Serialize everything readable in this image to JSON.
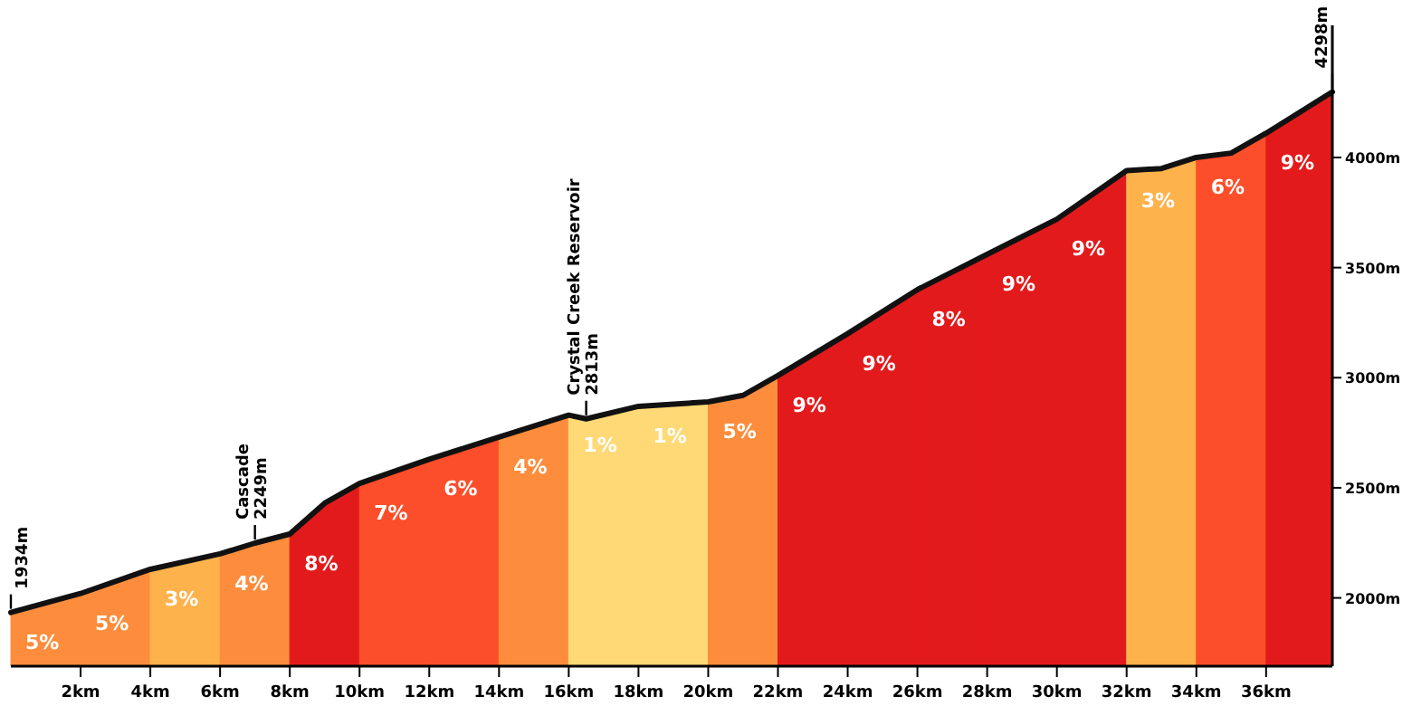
{
  "chart_data": {
    "type": "area",
    "series": [
      {
        "name": "5%",
        "color": "#fd8d3c",
        "x": [
          0,
          2
        ],
        "values": [
          1934,
          2020
        ]
      },
      {
        "name": "5%",
        "color": "#fd8d3c",
        "x": [
          2,
          4
        ],
        "values": [
          2020,
          2130
        ]
      },
      {
        "name": "3%",
        "color": "#feb24c",
        "x": [
          4,
          6
        ],
        "values": [
          2130,
          2200
        ]
      },
      {
        "name": "4%",
        "color": "#fd8d3c",
        "x": [
          6,
          7,
          8
        ],
        "values": [
          2200,
          2249,
          2290
        ]
      },
      {
        "name": "8%",
        "color": "#e31a1c",
        "x": [
          8,
          9,
          10
        ],
        "values": [
          2290,
          2430,
          2520
        ]
      },
      {
        "name": "7%",
        "color": "#fc4e2a",
        "x": [
          10,
          12
        ],
        "values": [
          2520,
          2630
        ]
      },
      {
        "name": "6%",
        "color": "#fc4e2a",
        "x": [
          12,
          14
        ],
        "values": [
          2630,
          2730
        ]
      },
      {
        "name": "4%",
        "color": "#fd8d3c",
        "x": [
          14,
          16
        ],
        "values": [
          2730,
          2830
        ]
      },
      {
        "name": "1%",
        "color": "#fed976",
        "x": [
          16,
          16.5,
          18
        ],
        "values": [
          2830,
          2813,
          2870
        ]
      },
      {
        "name": "1%",
        "color": "#fed976",
        "x": [
          18,
          20
        ],
        "values": [
          2870,
          2890
        ]
      },
      {
        "name": "5%",
        "color": "#fd8d3c",
        "x": [
          20,
          21,
          22
        ],
        "values": [
          2890,
          2920,
          3010
        ]
      },
      {
        "name": "9%",
        "color": "#e31a1c",
        "x": [
          22,
          24
        ],
        "values": [
          3010,
          3200
        ]
      },
      {
        "name": "9%",
        "color": "#e31a1c",
        "x": [
          24,
          26
        ],
        "values": [
          3200,
          3400
        ]
      },
      {
        "name": "8%",
        "color": "#e31a1c",
        "x": [
          26,
          28
        ],
        "values": [
          3400,
          3560
        ]
      },
      {
        "name": "9%",
        "color": "#e31a1c",
        "x": [
          28,
          30
        ],
        "values": [
          3560,
          3720
        ]
      },
      {
        "name": "9%",
        "color": "#e31a1c",
        "x": [
          30,
          32
        ],
        "values": [
          3720,
          3940
        ]
      },
      {
        "name": "3%",
        "color": "#feb24c",
        "x": [
          32,
          33,
          34
        ],
        "values": [
          3940,
          3950,
          4000
        ]
      },
      {
        "name": "6%",
        "color": "#fc4e2a",
        "x": [
          34,
          35,
          36
        ],
        "values": [
          4000,
          4020,
          4110
        ]
      },
      {
        "name": "9%",
        "color": "#e31a1c",
        "x": [
          36,
          37.9
        ],
        "values": [
          4110,
          4298
        ]
      },
      {
        "type": "line",
        "color": "#111111",
        "x": [
          0,
          2,
          4,
          6,
          7,
          8,
          9,
          10,
          12,
          14,
          16,
          16.5,
          18,
          20,
          21,
          22,
          24,
          26,
          28,
          30,
          32,
          33,
          34,
          35,
          36,
          37.9
        ],
        "values": [
          1934,
          2020,
          2130,
          2200,
          2249,
          2290,
          2430,
          2520,
          2630,
          2730,
          2830,
          2813,
          2870,
          2890,
          2920,
          3010,
          3200,
          3400,
          3560,
          3720,
          3940,
          3950,
          4000,
          4020,
          4110,
          4298
        ]
      }
    ],
    "xlim": [
      0,
      37.9
    ],
    "ylim": [
      1690,
      4600
    ],
    "xticks": [
      {
        "value": 2,
        "label": "2km"
      },
      {
        "value": 4,
        "label": "4km"
      },
      {
        "value": 6,
        "label": "6km"
      },
      {
        "value": 8,
        "label": "8km"
      },
      {
        "value": 10,
        "label": "10km"
      },
      {
        "value": 12,
        "label": "12km"
      },
      {
        "value": 14,
        "label": "14km"
      },
      {
        "value": 16,
        "label": "16km"
      },
      {
        "value": 18,
        "label": "18km"
      },
      {
        "value": 20,
        "label": "20km"
      },
      {
        "value": 22,
        "label": "22km"
      },
      {
        "value": 24,
        "label": "24km"
      },
      {
        "value": 26,
        "label": "26km"
      },
      {
        "value": 28,
        "label": "28km"
      },
      {
        "value": 30,
        "label": "30km"
      },
      {
        "value": 32,
        "label": "32km"
      },
      {
        "value": 34,
        "label": "34km"
      },
      {
        "value": 36,
        "label": "36km"
      }
    ],
    "yticks": [
      {
        "value": 2000,
        "label": "2000m"
      },
      {
        "value": 2500,
        "label": "2500m"
      },
      {
        "value": 3000,
        "label": "3000m"
      },
      {
        "value": 3500,
        "label": "3500m"
      },
      {
        "value": 4000,
        "label": "4000m"
      }
    ],
    "annotations": [
      {
        "text": "1934m",
        "x": 0,
        "y": 1934
      },
      {
        "text": "Cascade\n2249m",
        "x": 7,
        "y": 2249
      },
      {
        "text": "Crystal Creek Reservoir\n2813m",
        "x": 16.5,
        "y": 2813
      },
      {
        "text": "4298m",
        "x": 37.9,
        "y": 4298
      }
    ]
  }
}
